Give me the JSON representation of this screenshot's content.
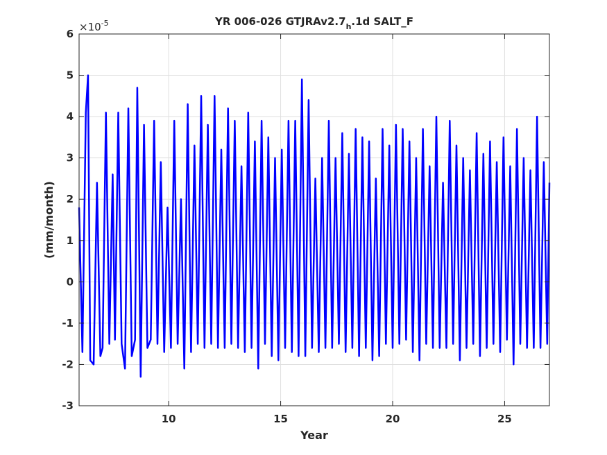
{
  "chart_data": {
    "type": "line",
    "title": {
      "prefix": "YR 006-026 GTJRAv2.7",
      "subscript": "h",
      "suffix": ".1d SALT_F"
    },
    "xlabel": "Year",
    "ylabel": "(mm/month)",
    "y_exponent_label": "×10",
    "y_exponent_power": "-5",
    "xlim": [
      6,
      27
    ],
    "ylim": [
      -3,
      6
    ],
    "xticks": [
      10,
      15,
      20,
      25
    ],
    "xtick_labels": [
      "10",
      "15",
      "20",
      "25"
    ],
    "yticks": [
      -3,
      -2,
      -1,
      0,
      1,
      2,
      3,
      4,
      5,
      6
    ],
    "ytick_labels": [
      "-3",
      "-2",
      "-1",
      "0",
      "1",
      "2",
      "3",
      "4",
      "5",
      "6"
    ],
    "grid": true,
    "line_color": "#0000ff",
    "series": [
      {
        "x": [
          6.0,
          6.15,
          6.3,
          6.4,
          6.5,
          6.65,
          6.8,
          6.95,
          7.05,
          7.2,
          7.35,
          7.5,
          7.6,
          7.75,
          7.9,
          8.05,
          8.2,
          8.35,
          8.5,
          8.6,
          8.75,
          8.9,
          9.05,
          9.2,
          9.35,
          9.5,
          9.65,
          9.8,
          9.95,
          10.1,
          10.25,
          10.4,
          10.55,
          10.7,
          10.85,
          11.0,
          11.15,
          11.3,
          11.45,
          11.6,
          11.75,
          11.9,
          12.05,
          12.2,
          12.35,
          12.5,
          12.65,
          12.8,
          12.95,
          13.1,
          13.25,
          13.4,
          13.55,
          13.7,
          13.85,
          14.0,
          14.15,
          14.3,
          14.45,
          14.6,
          14.75,
          14.9,
          15.05,
          15.2,
          15.35,
          15.5,
          15.65,
          15.8,
          15.95,
          16.1,
          16.25,
          16.4,
          16.55,
          16.7,
          16.85,
          17.0,
          17.15,
          17.3,
          17.45,
          17.6,
          17.75,
          17.9,
          18.05,
          18.2,
          18.35,
          18.5,
          18.65,
          18.8,
          18.95,
          19.1,
          19.25,
          19.4,
          19.55,
          19.7,
          19.85,
          20.0,
          20.15,
          20.3,
          20.45,
          20.6,
          20.75,
          20.9,
          21.05,
          21.2,
          21.35,
          21.5,
          21.65,
          21.8,
          21.95,
          22.1,
          22.25,
          22.4,
          22.55,
          22.7,
          22.85,
          23.0,
          23.15,
          23.3,
          23.45,
          23.6,
          23.75,
          23.9,
          24.05,
          24.2,
          24.35,
          24.5,
          24.65,
          24.8,
          24.95,
          25.1,
          25.25,
          25.4,
          25.55,
          25.7,
          25.85,
          26.0,
          26.15,
          26.3,
          26.45,
          26.6,
          26.75,
          26.9,
          27.0
        ],
        "y": [
          1.8,
          -1.7,
          4.1,
          5.0,
          -1.9,
          -2.0,
          2.4,
          -1.8,
          -1.6,
          4.1,
          -1.5,
          2.6,
          -1.4,
          4.1,
          -1.5,
          -2.1,
          4.2,
          -1.8,
          -1.4,
          4.7,
          -2.3,
          3.8,
          -1.6,
          -1.4,
          3.9,
          -1.5,
          2.9,
          -1.7,
          1.8,
          -1.6,
          3.9,
          -1.5,
          2.0,
          -2.1,
          4.3,
          -1.7,
          3.3,
          -1.5,
          4.5,
          -1.6,
          3.8,
          -1.5,
          4.5,
          -1.6,
          3.2,
          -1.6,
          4.2,
          -1.5,
          3.9,
          -1.6,
          2.8,
          -1.7,
          4.1,
          -1.6,
          3.4,
          -2.1,
          3.9,
          -1.5,
          3.5,
          -1.8,
          3.0,
          -1.9,
          3.2,
          -1.6,
          3.9,
          -1.7,
          3.9,
          -1.8,
          4.9,
          -1.8,
          4.4,
          -1.6,
          2.5,
          -1.7,
          3.0,
          -1.6,
          3.9,
          -1.6,
          3.0,
          -1.5,
          3.6,
          -1.7,
          3.1,
          -1.6,
          3.7,
          -1.8,
          3.5,
          -1.6,
          3.4,
          -1.9,
          2.5,
          -1.8,
          3.7,
          -1.5,
          3.3,
          -1.6,
          3.8,
          -1.5,
          3.7,
          -1.4,
          3.4,
          -1.7,
          3.0,
          -1.9,
          3.7,
          -1.5,
          2.8,
          -1.6,
          4.0,
          -1.6,
          2.4,
          -1.6,
          3.9,
          -1.5,
          3.3,
          -1.9,
          3.0,
          -1.6,
          2.7,
          -1.5,
          3.6,
          -1.8,
          3.1,
          -1.6,
          3.4,
          -1.5,
          2.9,
          -1.7,
          3.5,
          -1.4,
          2.8,
          -2.0,
          3.7,
          -1.5,
          3.0,
          -1.6,
          2.7,
          -1.6,
          4.0,
          -1.6,
          2.9,
          -1.5,
          2.4
        ]
      }
    ]
  }
}
